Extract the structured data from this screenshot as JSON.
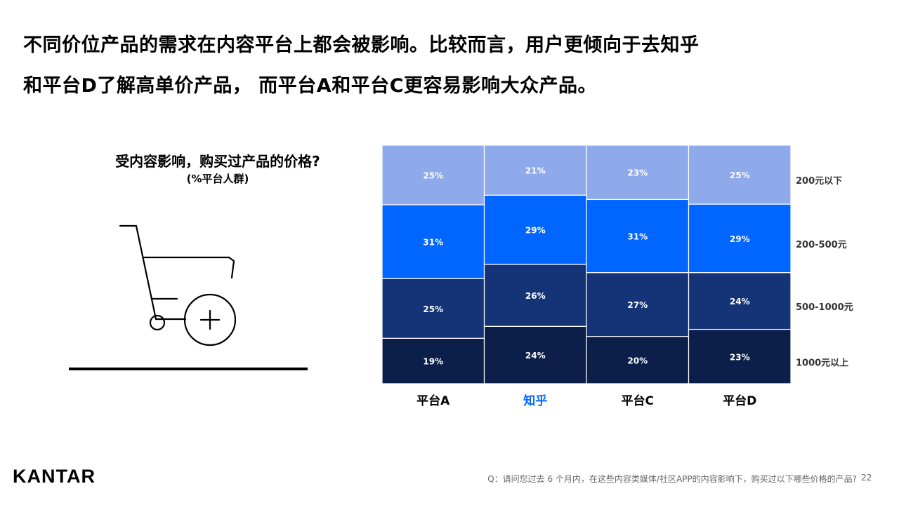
{
  "headline": {
    "line1": "不同价位产品的需求在内容平台上都会被影响。比较而言，用户更倾向于去知乎",
    "line2": "和平台D了解高单价产品， 而平台A和平台C更容易影响大众产品。"
  },
  "chart_data": {
    "type": "bar",
    "subtype": "stacked-100-mekko",
    "title": "受内容影响，购买过产品的价格?",
    "subtitle": "(%平台人群)",
    "categories": [
      "平台A",
      "知乎",
      "平台C",
      "平台D"
    ],
    "highlight_category": "知乎",
    "series": [
      {
        "name": "200元以下",
        "values": [
          25,
          21,
          23,
          25
        ],
        "color": "#8eaaea",
        "value_labels": [
          "25%",
          "21%",
          "23%",
          "25%"
        ]
      },
      {
        "name": "200-500元",
        "values": [
          31,
          29,
          31,
          29
        ],
        "color": "#0066ff",
        "value_labels": [
          "31%",
          "29%",
          "31%",
          "29%"
        ]
      },
      {
        "name": "500-1000元",
        "values": [
          25,
          26,
          27,
          24
        ],
        "color": "#153377",
        "value_labels": [
          "25%",
          "26%",
          "27%",
          "24%"
        ]
      },
      {
        "name": "1000元以上",
        "values": [
          19,
          24,
          20,
          23
        ],
        "color": "#0c1e4a",
        "value_labels": [
          "19%",
          "24%",
          "20%",
          "23%"
        ]
      }
    ],
    "ylim": [
      0,
      100
    ],
    "legend": "right",
    "highlight_color": "#0066ff"
  },
  "icons": {
    "cart": "shopping-cart-add-icon"
  },
  "footer": {
    "logo": "KANTAR",
    "note": "Q：请问您过去 6 个月内，在这些内容类媒体/社区APP的内容影响下，购买过以下哪些价格的产品?",
    "page": "22"
  }
}
